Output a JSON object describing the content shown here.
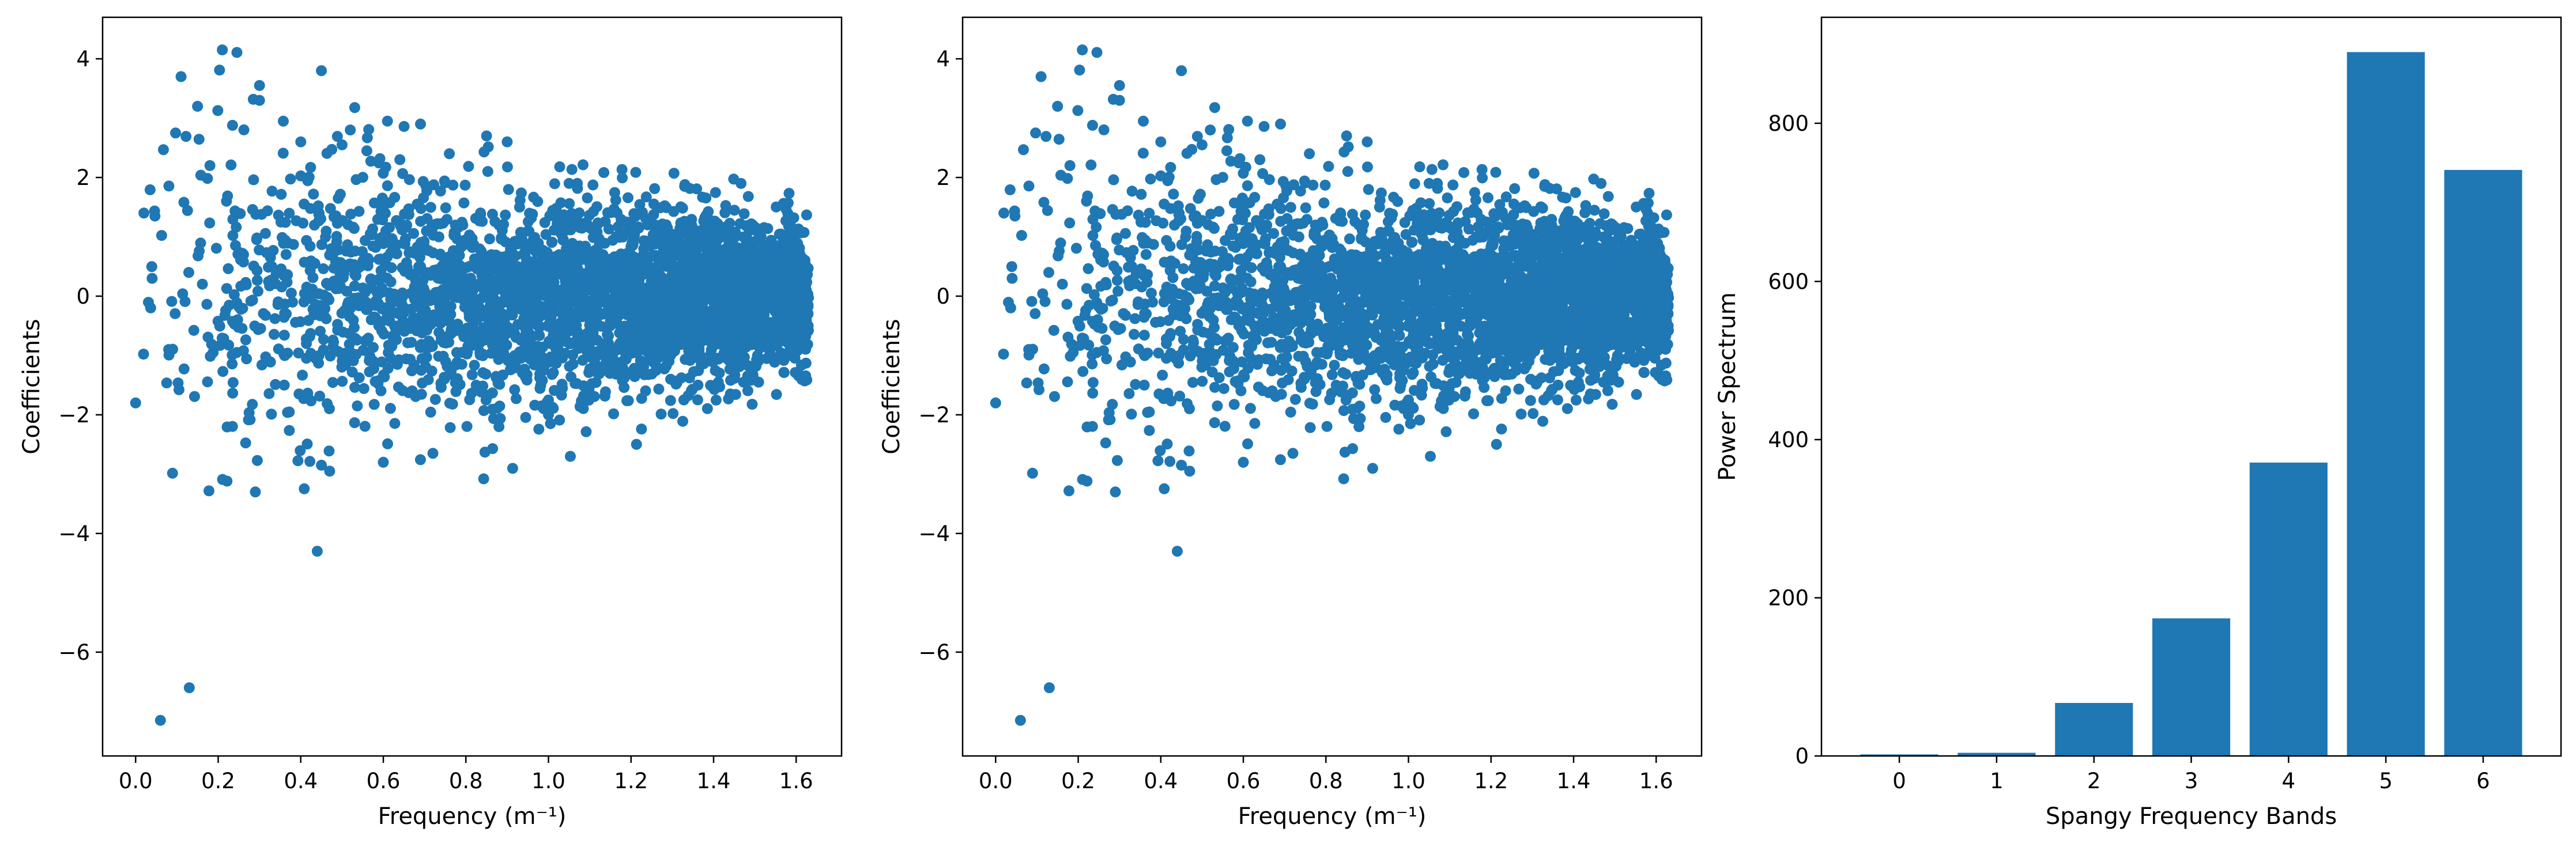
{
  "figure": {
    "colors": {
      "marker": "#1f77b4",
      "bar": "#1f77b4",
      "axes": "#000000",
      "background": "#ffffff"
    }
  },
  "chart_data": [
    {
      "type": "scatter",
      "xlabel": "Frequency (m⁻¹)",
      "ylabel": "Coefficients",
      "xlim": [
        -0.08,
        1.71
      ],
      "ylim": [
        -7.75,
        4.7
      ],
      "xticks": [
        0.0,
        0.2,
        0.4,
        0.6,
        0.8,
        1.0,
        1.2,
        1.4,
        1.6
      ],
      "xtick_labels": [
        "0.0",
        "0.2",
        "0.4",
        "0.6",
        "0.8",
        "1.0",
        "1.2",
        "1.4",
        "1.6"
      ],
      "yticks": [
        -6,
        -4,
        -2,
        0,
        2,
        4
      ],
      "ytick_labels": [
        "−6",
        "−4",
        "−2",
        "0",
        "2",
        "4"
      ],
      "grid": false,
      "series": [
        {
          "points_summary": "several thousand points; spread narrows with increasing frequency",
          "x": [
            0.0,
            0.02,
            0.04,
            0.06,
            0.08,
            0.11,
            0.13,
            0.15,
            0.18,
            0.21,
            0.22,
            0.29,
            0.3,
            0.3,
            0.33,
            0.36,
            0.4,
            0.44,
            0.45,
            0.45,
            0.47,
            0.5,
            0.52,
            0.56,
            0.6,
            0.61,
            0.64,
            0.69,
            0.72,
            0.76,
            0.85,
            0.88,
            0.9,
            1.0,
            1.05,
            1.07,
            1.33,
            1.0,
            0.93
          ],
          "y": [
            -1.8,
            1.4,
            0.3,
            -7.15,
            -0.9,
            3.7,
            -6.6,
            3.2,
            2.2,
            4.15,
            1.6,
            -3.3,
            3.3,
            3.55,
            0.5,
            -1.5,
            2.6,
            -4.3,
            3.8,
            -2.85,
            -2.95,
            2.55,
            2.8,
            2.45,
            -2.8,
            2.95,
            2.3,
            2.9,
            -2.65,
            2.4,
            2.7,
            -2.2,
            2.6,
            -2.0,
            1.9,
            1.9,
            1.85,
            -1.75,
            1.5
          ]
        }
      ]
    },
    {
      "type": "scatter",
      "xlabel": "Frequency (m⁻¹)",
      "ylabel": "Coefficients",
      "xlim": [
        -0.08,
        1.71
      ],
      "ylim": [
        -7.75,
        4.7
      ],
      "xticks": [
        0.0,
        0.2,
        0.4,
        0.6,
        0.8,
        1.0,
        1.2,
        1.4,
        1.6
      ],
      "xtick_labels": [
        "0.0",
        "0.2",
        "0.4",
        "0.6",
        "0.8",
        "1.0",
        "1.2",
        "1.4",
        "1.6"
      ],
      "yticks": [
        -6,
        -4,
        -2,
        0,
        2,
        4
      ],
      "ytick_labels": [
        "−6",
        "−4",
        "−2",
        "0",
        "2",
        "4"
      ],
      "grid": false,
      "series": [
        {
          "points_summary": "identical to the left panel",
          "x": [
            0.0,
            0.02,
            0.04,
            0.06,
            0.08,
            0.11,
            0.13,
            0.15,
            0.18,
            0.21,
            0.22,
            0.29,
            0.3,
            0.3,
            0.33,
            0.36,
            0.4,
            0.44,
            0.45,
            0.45,
            0.47,
            0.5,
            0.52,
            0.56,
            0.6,
            0.61,
            0.64,
            0.69,
            0.72,
            0.76,
            0.85,
            0.88,
            0.9,
            1.0,
            1.05,
            1.07,
            1.33,
            1.0,
            0.93
          ],
          "y": [
            -1.8,
            1.4,
            0.3,
            -7.15,
            -0.9,
            3.7,
            -6.6,
            3.2,
            2.2,
            4.15,
            1.6,
            -3.3,
            3.3,
            3.55,
            0.5,
            -1.5,
            2.6,
            -4.3,
            3.8,
            -2.85,
            -2.95,
            2.55,
            2.8,
            2.45,
            -2.8,
            2.95,
            2.3,
            2.9,
            -2.65,
            2.4,
            2.7,
            -2.2,
            2.6,
            -2.0,
            1.9,
            1.9,
            1.85,
            -1.75,
            1.5
          ]
        }
      ]
    },
    {
      "type": "bar",
      "xlabel": "Spangy Frequency Bands",
      "ylabel": "Power Spectrum",
      "categories": [
        "0",
        "1",
        "2",
        "3",
        "4",
        "5",
        "6"
      ],
      "values": [
        2,
        4,
        67,
        174,
        371,
        890,
        741
      ],
      "ylim": [
        0,
        934
      ],
      "yticks": [
        0,
        200,
        400,
        600,
        800
      ],
      "ytick_labels": [
        "0",
        "200",
        "400",
        "600",
        "800"
      ],
      "grid": false
    }
  ]
}
